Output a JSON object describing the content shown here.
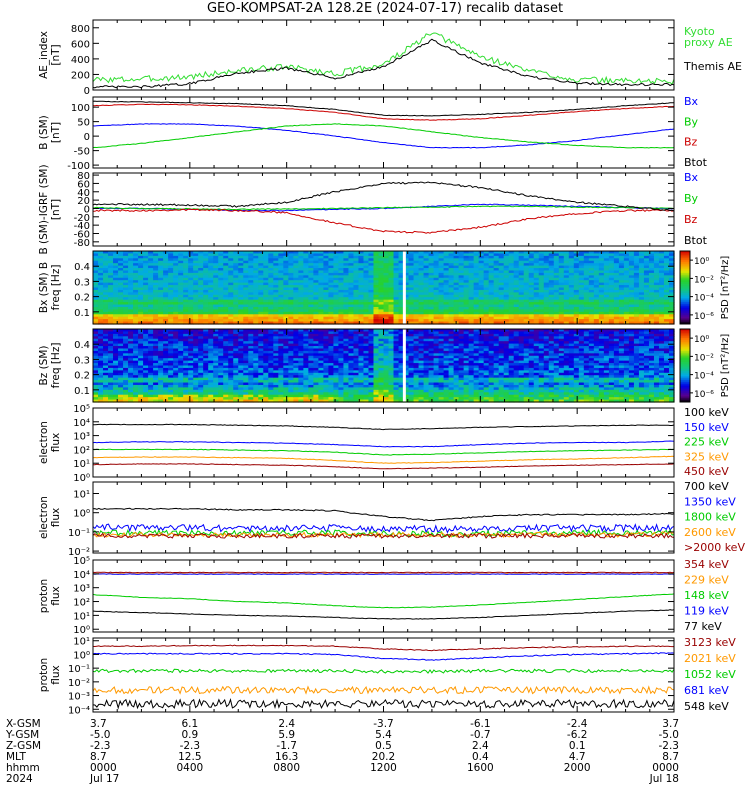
{
  "title": "GEO-KOMPSAT-2A 128.2E (2024-07-17) recalib dataset",
  "colors": {
    "black": "#000000",
    "blue": "#0000ff",
    "green": "#00cc00",
    "red": "#cc0000",
    "orange": "#ff9900",
    "darkred": "#990000",
    "lime": "#33dd33"
  },
  "ephemeris": {
    "row_labels": [
      "X-GSM",
      "Y-GSM",
      "Z-GSM",
      "MLT",
      "hhmm",
      "2024"
    ],
    "columns": [
      [
        "3.7",
        "-5.0",
        "-2.3",
        "8.7",
        "0000",
        "Jul 17"
      ],
      [
        "6.1",
        "0.9",
        "-2.3",
        "12.5",
        "0400",
        ""
      ],
      [
        "2.4",
        "5.9",
        "-1.7",
        "16.3",
        "0800",
        ""
      ],
      [
        "-3.7",
        "5.4",
        "0.5",
        "20.2",
        "1200",
        ""
      ],
      [
        "-6.1",
        "-0.7",
        "2.4",
        "0.4",
        "1600",
        ""
      ],
      [
        "-2.4",
        "-6.2",
        "0.1",
        "4.7",
        "2000",
        ""
      ],
      [
        "3.7",
        "-5.0",
        "-2.3",
        "8.7",
        "0000",
        "Jul 18"
      ]
    ]
  },
  "chart_data": [
    {
      "type": "line",
      "id": "ae",
      "ylabel": "AE_index\n[nT]",
      "ylim": [
        0,
        900
      ],
      "yticks": [
        "0",
        "200",
        "400",
        "600",
        "800"
      ],
      "ytick_values": [
        0,
        200,
        400,
        600,
        800
      ],
      "x_hours": [
        0,
        2,
        4,
        6,
        8,
        10,
        12,
        14,
        16,
        18,
        20,
        22,
        24
      ],
      "series": [
        {
          "name": "Kyoto\nproxy AE",
          "color": "#33dd33",
          "noise": 40,
          "values": [
            130,
            140,
            170,
            250,
            300,
            210,
            330,
            730,
            430,
            250,
            130,
            120,
            110
          ]
        },
        {
          "name": "Themis AE",
          "color": "#000000",
          "noise": 15,
          "values": [
            40,
            40,
            80,
            220,
            280,
            150,
            300,
            640,
            350,
            170,
            90,
            70,
            70
          ]
        }
      ],
      "legend_align": "mixed"
    },
    {
      "type": "line",
      "id": "bsm",
      "ylabel": "B (SM)\n[nT]",
      "ylim": [
        -110,
        135
      ],
      "yticks": [
        "-100",
        "-50",
        "0",
        "50",
        "100"
      ],
      "ytick_values": [
        -100,
        -50,
        0,
        50,
        100
      ],
      "x_hours": [
        0,
        2,
        4,
        6,
        8,
        10,
        12,
        14,
        16,
        18,
        20,
        22,
        24
      ],
      "series": [
        {
          "name": "Bx",
          "color": "#0000ff",
          "noise": 1,
          "values": [
            35,
            42,
            42,
            34,
            20,
            0,
            -22,
            -40,
            -40,
            -30,
            -15,
            5,
            25
          ]
        },
        {
          "name": "By",
          "color": "#00cc00",
          "noise": 1,
          "values": [
            -40,
            -25,
            -5,
            15,
            35,
            42,
            35,
            15,
            -5,
            -20,
            -32,
            -40,
            -40
          ]
        },
        {
          "name": "Bz",
          "color": "#cc0000",
          "noise": 1,
          "values": [
            105,
            110,
            108,
            103,
            95,
            82,
            60,
            55,
            60,
            72,
            85,
            95,
            103
          ]
        },
        {
          "name": "Btot",
          "color": "#000000",
          "noise": 1,
          "values": [
            120,
            118,
            115,
            112,
            105,
            92,
            72,
            70,
            75,
            82,
            92,
            105,
            115
          ]
        }
      ]
    },
    {
      "type": "line",
      "id": "bdiff",
      "ylabel": "B (SM)-IGRF (SM)\n[nT]",
      "ylim": [
        -90,
        85
      ],
      "yticks": [
        "-80",
        "-60",
        "-40",
        "-20",
        "0",
        "20",
        "40",
        "60",
        "80"
      ],
      "ytick_values": [
        -80,
        -60,
        -40,
        -20,
        0,
        20,
        40,
        60,
        80
      ],
      "x_hours": [
        0,
        2,
        4,
        6,
        8,
        10,
        12,
        14,
        16,
        18,
        20,
        22,
        24
      ],
      "series": [
        {
          "name": "Bx",
          "color": "#0000ff",
          "noise": 1,
          "values": [
            0,
            0,
            -2,
            -5,
            -5,
            -2,
            0,
            5,
            10,
            8,
            5,
            2,
            0
          ]
        },
        {
          "name": "By",
          "color": "#00cc00",
          "noise": 1,
          "values": [
            2,
            0,
            -1,
            -2,
            -1,
            0,
            2,
            3,
            5,
            5,
            3,
            2,
            0
          ]
        },
        {
          "name": "Bz",
          "color": "#cc0000",
          "noise": 2,
          "values": [
            -5,
            -5,
            -3,
            -5,
            -10,
            -35,
            -55,
            -58,
            -45,
            -25,
            -12,
            -5,
            -5
          ]
        },
        {
          "name": "Btot",
          "color": "#000000",
          "noise": 2,
          "values": [
            10,
            10,
            8,
            5,
            15,
            40,
            60,
            62,
            50,
            30,
            15,
            5,
            -5
          ]
        }
      ]
    },
    {
      "type": "heatmap",
      "id": "spec_bx",
      "ylabel": "Bx (SM) B\nfreq [Hz]",
      "yticks": [
        "0.1",
        "0.2",
        "0.3",
        "0.4"
      ],
      "ytick_values": [
        0.1,
        0.2,
        0.3,
        0.4
      ],
      "ylim": [
        0.02,
        0.5
      ],
      "cbar_label": "PSD [nT²/Hz]",
      "cbar_ticks": [
        "10⁰",
        "10⁻²",
        "10⁻⁴",
        "10⁻⁶"
      ],
      "cbar_tick_values": [
        0,
        -2,
        -4,
        -6
      ],
      "cbar_range": [
        -7,
        1
      ]
    },
    {
      "type": "heatmap",
      "id": "spec_bz",
      "ylabel": "Bz (SM)\nfreq [Hz]",
      "yticks": [
        "0.1",
        "0.2",
        "0.3",
        "0.4"
      ],
      "ytick_values": [
        0.1,
        0.2,
        0.3,
        0.4
      ],
      "ylim": [
        0.02,
        0.5
      ],
      "cbar_label": "PSD [nT²/Hz]",
      "cbar_ticks": [
        "10⁰",
        "10⁻²",
        "10⁻⁴",
        "10⁻⁶"
      ],
      "cbar_tick_values": [
        0,
        -2,
        -4,
        -6
      ],
      "cbar_range": [
        -7,
        1
      ]
    },
    {
      "type": "line",
      "id": "elec1",
      "log": true,
      "ylabel": "electron\nflux",
      "ylim": [
        0,
        5
      ],
      "yticks": [
        "10⁰",
        "10¹",
        "10²",
        "10³",
        "10⁴",
        "10⁵"
      ],
      "ytick_values": [
        0,
        1,
        2,
        3,
        4,
        5
      ],
      "x_hours": [
        0,
        2,
        4,
        6,
        8,
        10,
        12,
        14,
        16,
        18,
        20,
        22,
        24
      ],
      "series": [
        {
          "name": "100 keV",
          "color": "#000000",
          "noise": 0.02,
          "values": [
            3.8,
            3.8,
            3.8,
            3.75,
            3.7,
            3.6,
            3.45,
            3.5,
            3.6,
            3.65,
            3.7,
            3.75,
            3.75
          ]
        },
        {
          "name": "150 keV",
          "color": "#0000ff",
          "noise": 0.02,
          "values": [
            2.5,
            2.55,
            2.55,
            2.5,
            2.45,
            2.35,
            2.2,
            2.2,
            2.35,
            2.45,
            2.5,
            2.5,
            2.6
          ]
        },
        {
          "name": "225 keV",
          "color": "#00cc00",
          "noise": 0.02,
          "values": [
            2.0,
            2.0,
            2.0,
            1.95,
            1.9,
            1.8,
            1.6,
            1.65,
            1.75,
            1.85,
            1.9,
            1.95,
            2.0
          ]
        },
        {
          "name": "325 keV",
          "color": "#ff9900",
          "noise": 0.02,
          "values": [
            1.4,
            1.45,
            1.45,
            1.4,
            1.35,
            1.2,
            1.0,
            1.05,
            1.15,
            1.25,
            1.3,
            1.4,
            1.5
          ]
        },
        {
          "name": "450 keV",
          "color": "#990000",
          "noise": 0.02,
          "values": [
            0.9,
            0.95,
            0.95,
            0.9,
            0.85,
            0.75,
            0.6,
            0.65,
            0.7,
            0.8,
            0.85,
            0.9,
            0.95
          ]
        }
      ]
    },
    {
      "type": "line",
      "id": "elec2",
      "log": true,
      "ylabel": "electron\nflux",
      "ylim": [
        -2.1,
        1.6
      ],
      "yticks": [
        "10⁻²",
        "10⁻¹",
        "10⁰",
        "10¹"
      ],
      "ytick_values": [
        -2,
        -1,
        0,
        1
      ],
      "x_hours": [
        0,
        2,
        4,
        6,
        8,
        10,
        12,
        14,
        16,
        18,
        20,
        22,
        24
      ],
      "series": [
        {
          "name": "700 keV",
          "color": "#000000",
          "noise": 0.03,
          "values": [
            0.2,
            0.2,
            0.2,
            0.15,
            0.15,
            0.1,
            -0.2,
            -0.4,
            -0.2,
            -0.1,
            -0.1,
            -0.1,
            -0.05
          ]
        },
        {
          "name": "1350 keV",
          "color": "#0000ff",
          "noise": 0.18,
          "values": [
            -0.75,
            -0.8,
            -0.8,
            -0.8,
            -0.8,
            -0.8,
            -0.85,
            -0.85,
            -0.85,
            -0.8,
            -0.8,
            -0.8,
            -0.8
          ]
        },
        {
          "name": "1800 keV",
          "color": "#00cc00",
          "noise": 0.15,
          "values": [
            -1.05,
            -1.05,
            -1.05,
            -1.05,
            -1.05,
            -1.05,
            -1.1,
            -1.1,
            -1.1,
            -1.05,
            -1.05,
            -1.05,
            -1.05
          ]
        },
        {
          "name": "2600 keV",
          "color": "#ff9900",
          "noise": 0.12,
          "values": [
            -1.15,
            -1.15,
            -1.15,
            -1.15,
            -1.15,
            -1.15,
            -1.15,
            -1.15,
            -1.15,
            -1.15,
            -1.15,
            -1.15,
            -1.1
          ]
        },
        {
          "name": ">2000 keV",
          "color": "#990000",
          "noise": 0.12,
          "values": [
            -1.2,
            -1.2,
            -1.2,
            -1.2,
            -1.2,
            -1.2,
            -1.2,
            -1.2,
            -1.2,
            -1.2,
            -1.2,
            -1.2,
            -1.2
          ]
        }
      ]
    },
    {
      "type": "line",
      "id": "prot1",
      "log": true,
      "ylabel": "proton\nflux",
      "ylim": [
        -0.2,
        5
      ],
      "yticks": [
        "10⁰",
        "10¹",
        "10²",
        "10³",
        "10⁴",
        "10⁵"
      ],
      "ytick_values": [
        0,
        1,
        2,
        3,
        4,
        5
      ],
      "x_hours": [
        0,
        2,
        4,
        6,
        8,
        10,
        12,
        14,
        16,
        18,
        20,
        22,
        24
      ],
      "series": [
        {
          "name": "354 keV",
          "color": "#990000",
          "noise": 0.02,
          "values": [
            4.1,
            4.1,
            4.1,
            4.1,
            4.1,
            4.1,
            4.1,
            4.1,
            4.1,
            4.1,
            4.1,
            4.1,
            4.1
          ]
        },
        {
          "name": "229 keV",
          "color": "#ff9900",
          "noise": 0.02,
          "values": [
            4.0,
            4.0,
            4.0,
            4.0,
            4.0,
            4.0,
            4.0,
            4.0,
            4.0,
            4.0,
            4.0,
            4.0,
            4.0
          ]
        },
        {
          "name": "148 keV",
          "color": "#00cc00",
          "noise": 0.02,
          "values": [
            2.5,
            2.3,
            2.2,
            2.0,
            1.9,
            1.7,
            1.55,
            1.6,
            1.75,
            1.95,
            2.15,
            2.35,
            2.55
          ]
        },
        {
          "name": "119 keV",
          "color": "#0000ff",
          "noise": 0.02,
          "values": [
            3.98,
            3.98,
            3.98,
            3.98,
            3.98,
            3.98,
            3.98,
            3.98,
            3.98,
            3.98,
            3.98,
            3.98,
            3.98
          ]
        },
        {
          "name": "77 keV",
          "color": "#000000",
          "noise": 0.02,
          "values": [
            1.3,
            1.2,
            1.1,
            1.0,
            0.95,
            0.85,
            0.75,
            0.75,
            0.85,
            1.0,
            1.15,
            1.3,
            1.4
          ]
        }
      ]
    },
    {
      "type": "line",
      "id": "prot2",
      "log": true,
      "ylabel": "proton\nflux",
      "ylim": [
        -4.2,
        1.2
      ],
      "yticks": [
        "10⁻⁴",
        "10⁻³",
        "10⁻²",
        "10⁻¹",
        "10⁰",
        "10¹"
      ],
      "ytick_values": [
        -4,
        -3,
        -2,
        -1,
        0,
        1
      ],
      "x_hours": [
        0,
        2,
        4,
        6,
        8,
        10,
        12,
        14,
        16,
        18,
        20,
        22,
        24
      ],
      "series": [
        {
          "name": "3123 keV",
          "color": "#990000",
          "noise": 0.03,
          "values": [
            0.6,
            0.6,
            0.65,
            0.65,
            0.65,
            0.6,
            0.4,
            0.3,
            0.4,
            0.5,
            0.55,
            0.6,
            0.6
          ]
        },
        {
          "name": "2021 keV",
          "color": "#ff9900",
          "noise": 0.25,
          "values": [
            -2.6,
            -2.6,
            -2.6,
            -2.6,
            -2.6,
            -2.6,
            -2.6,
            -2.6,
            -2.6,
            -2.6,
            -2.6,
            -2.6,
            -2.6
          ]
        },
        {
          "name": "1052 keV",
          "color": "#00cc00",
          "noise": 0.12,
          "values": [
            -1.2,
            -1.2,
            -1.2,
            -1.2,
            -1.2,
            -1.2,
            -1.25,
            -1.25,
            -1.2,
            -1.2,
            -1.2,
            -1.2,
            -1.2
          ]
        },
        {
          "name": "681 keV",
          "color": "#0000ff",
          "noise": 0.04,
          "values": [
            0.05,
            0.05,
            0.05,
            0.05,
            0.05,
            0.0,
            -0.3,
            -0.4,
            -0.25,
            -0.1,
            0.0,
            0.05,
            0.1
          ]
        },
        {
          "name": "548 keV",
          "color": "#000000",
          "noise": 0.3,
          "values": [
            -3.6,
            -3.6,
            -3.6,
            -3.6,
            -3.6,
            -3.6,
            -3.6,
            -3.6,
            -3.6,
            -3.6,
            -3.6,
            -3.6,
            -3.6
          ]
        }
      ]
    }
  ]
}
